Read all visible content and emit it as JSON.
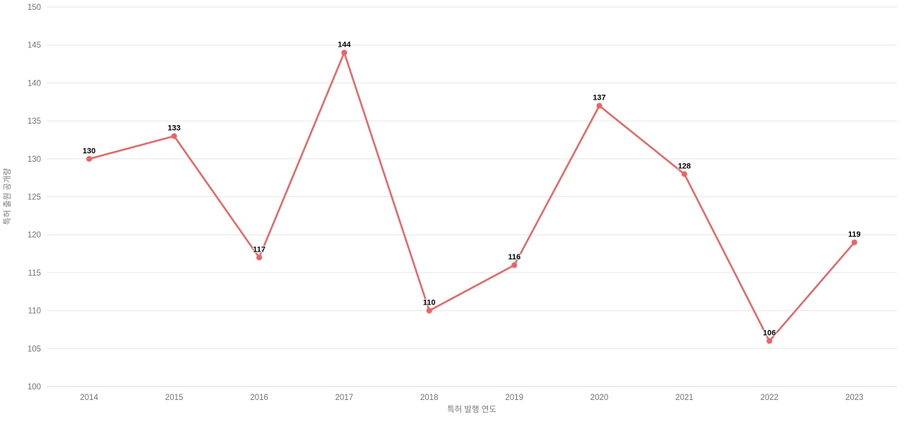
{
  "chart_data": {
    "type": "line",
    "categories": [
      "2014",
      "2015",
      "2016",
      "2017",
      "2018",
      "2019",
      "2020",
      "2021",
      "2022",
      "2023"
    ],
    "values": [
      130,
      133,
      117,
      144,
      110,
      116,
      137,
      128,
      106,
      119
    ],
    "title": "",
    "xlabel": "특허 발행 연도",
    "ylabel": "특허 출원 공개량",
    "ylim": [
      100,
      150
    ],
    "yticks": [
      100,
      105,
      110,
      115,
      120,
      125,
      130,
      135,
      140,
      145,
      150
    ],
    "grid": true,
    "legend": "none",
    "colors": {
      "line": "#f45f5f",
      "marker": "#f45f5f",
      "data_label": "#000000",
      "grid_line": "#e6e6e6",
      "axis_line": "#ccd6eb",
      "tick_label": "#737373",
      "axis_title": "#7a7a7a",
      "background": "#ffffff"
    }
  }
}
